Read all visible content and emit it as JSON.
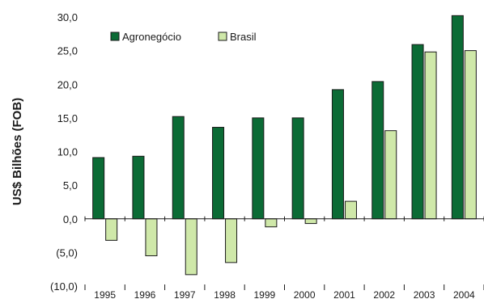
{
  "chart_data": {
    "type": "bar",
    "title": "",
    "xlabel": "",
    "ylabel": "US$ Bilhões (FOB)",
    "ylim": [
      -10,
      30
    ],
    "yticks": [
      30,
      25,
      20,
      15,
      10,
      5,
      0,
      -5,
      -10
    ],
    "ytick_labels": [
      "30,0",
      "25,0",
      "20,0",
      "15,0",
      "10,0",
      "5,0",
      "0,0",
      "(5,0)",
      "(10,0)"
    ],
    "categories": [
      "1995",
      "1996",
      "1997",
      "1998",
      "1999",
      "2000",
      "2001",
      "2002",
      "2003",
      "2004"
    ],
    "series": [
      {
        "name": "Agronegócio",
        "color": "#0b6b35",
        "values": [
          9.1,
          9.3,
          15.2,
          13.6,
          15.0,
          15.0,
          19.2,
          20.4,
          25.9,
          30.2
        ]
      },
      {
        "name": "Brasil",
        "color": "#cfe8a9",
        "values": [
          -3.2,
          -5.5,
          -8.3,
          -6.5,
          -1.2,
          -0.7,
          2.6,
          13.1,
          24.8,
          25.0
        ]
      }
    ],
    "legend_position": "top-left",
    "grid": false
  }
}
